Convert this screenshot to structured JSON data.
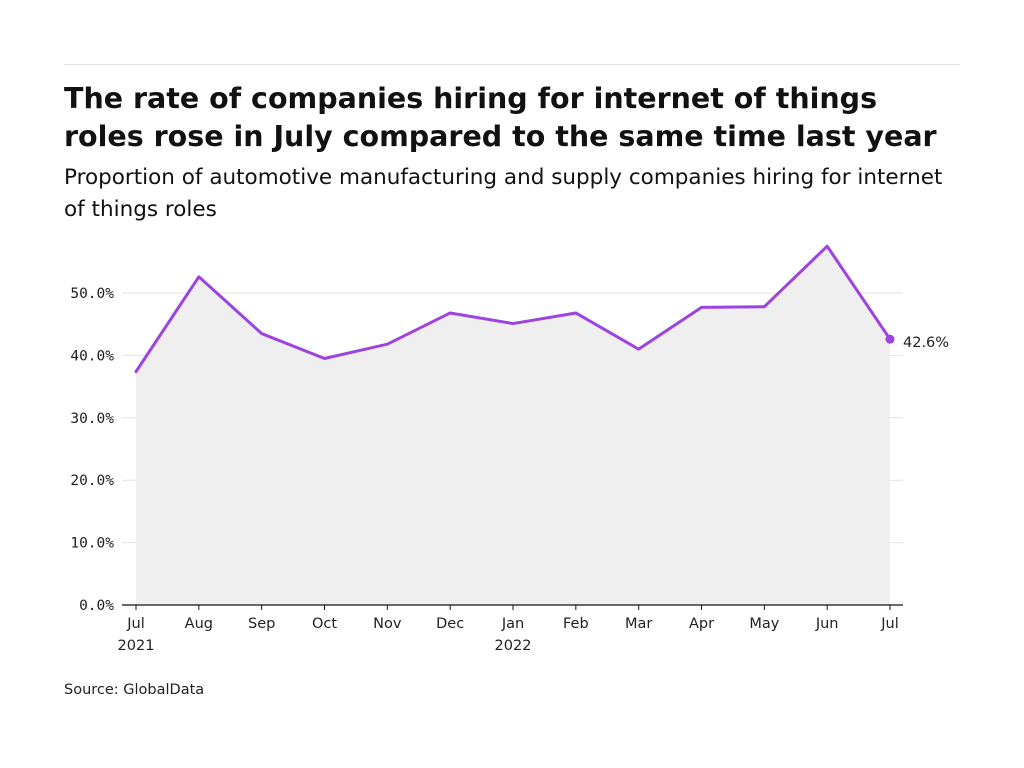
{
  "header": {
    "title": "The rate of companies hiring for internet of things roles rose in July compared to the same time last year",
    "subtitle": "Proportion of automotive manufacturing and supply companies hiring for internet of things roles"
  },
  "footer": {
    "source": "Source: GlobalData"
  },
  "colors": {
    "line": "#9c43e0",
    "area": "#efefef",
    "grid": "#e2e2e2",
    "axis": "#111111"
  },
  "chart_data": {
    "type": "area",
    "title": "The rate of companies hiring for internet of things roles rose in July compared to the same time last year",
    "subtitle": "Proportion of automotive manufacturing and supply companies hiring for internet of things roles",
    "xlabel": "",
    "ylabel": "",
    "ylim": [
      0,
      50
    ],
    "y_ticks": [
      "0.0%",
      "10.0%",
      "20.0%",
      "30.0%",
      "40.0%",
      "50.0%"
    ],
    "grid": true,
    "categories": [
      [
        "Jul",
        "2021"
      ],
      [
        "Aug",
        ""
      ],
      [
        "Sep",
        ""
      ],
      [
        "Oct",
        ""
      ],
      [
        "Nov",
        ""
      ],
      [
        "Dec",
        ""
      ],
      [
        "Jan",
        "2022"
      ],
      [
        "Feb",
        ""
      ],
      [
        "Mar",
        ""
      ],
      [
        "Apr",
        ""
      ],
      [
        "May",
        ""
      ],
      [
        "Jun",
        ""
      ],
      [
        "Jul",
        ""
      ]
    ],
    "series": [
      {
        "values": [
          37.4,
          52.6,
          43.5,
          39.5,
          41.8,
          46.8,
          45.1,
          46.8,
          41.0,
          47.7,
          47.8,
          57.5,
          42.6
        ]
      }
    ],
    "end_label": "42.6%"
  }
}
